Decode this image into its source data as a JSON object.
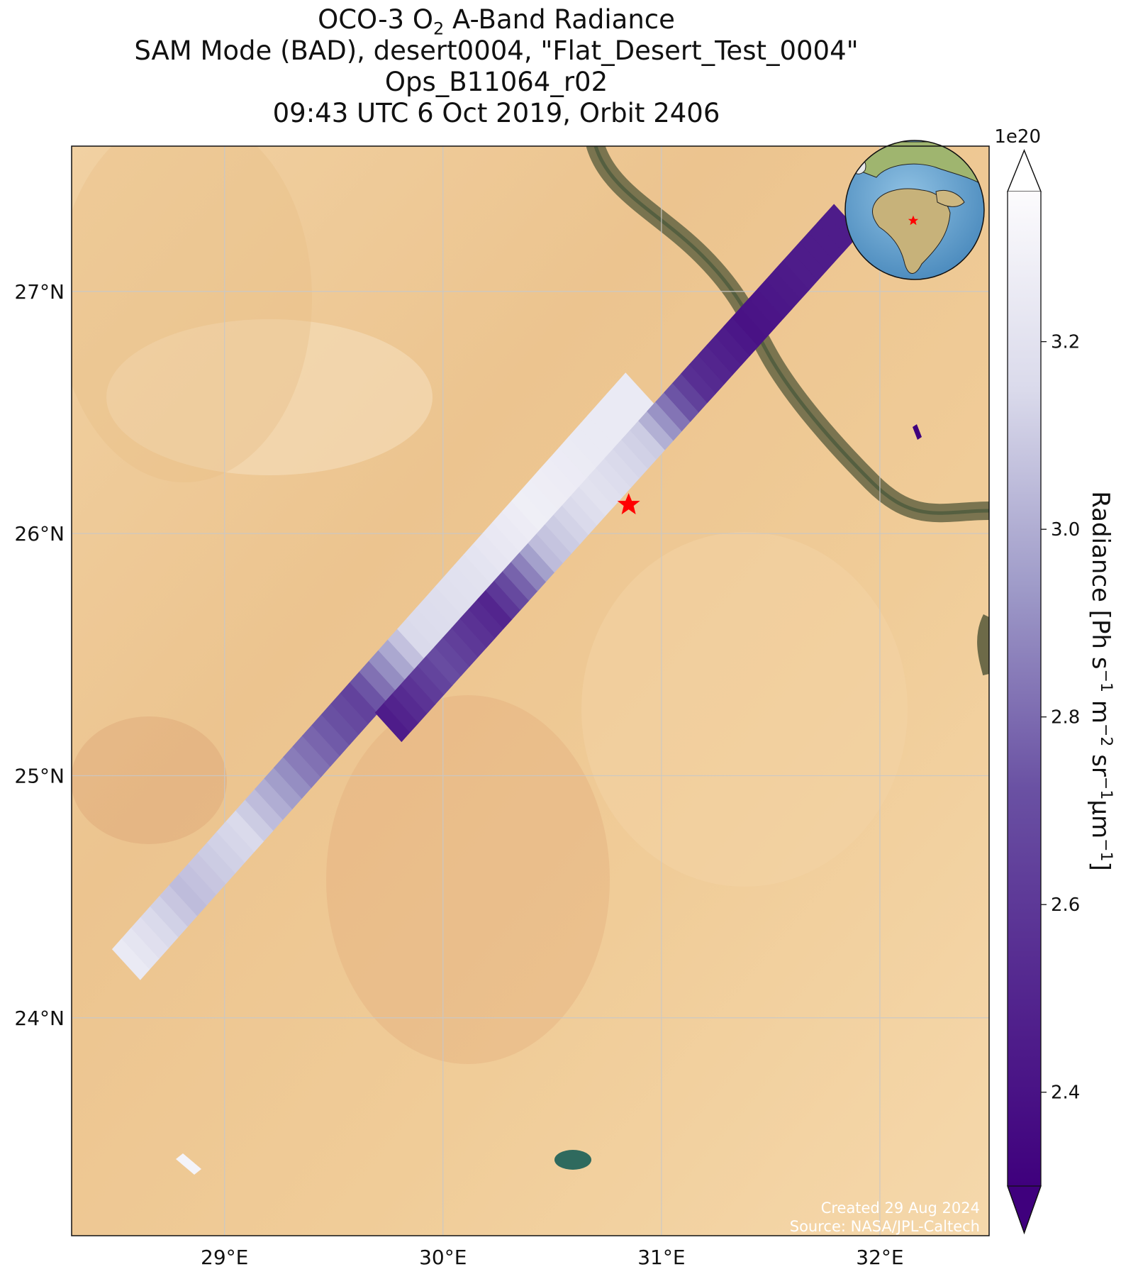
{
  "title": {
    "line1_prefix": "OCO-3 O",
    "line1_sub": "2",
    "line1_suffix": " A-Band Radiance",
    "line2": "SAM Mode (BAD), desert0004, \"Flat_Desert_Test_0004\"",
    "line3": "Ops_B11064_r02",
    "line4": "09:43 UTC 6 Oct 2019, Orbit 2406"
  },
  "map": {
    "lon_range": [
      28.3,
      32.5
    ],
    "lat_range": [
      23.1,
      27.6
    ],
    "lon_ticks": [
      {
        "value": 29,
        "label": "29°E"
      },
      {
        "value": 30,
        "label": "30°E"
      },
      {
        "value": 31,
        "label": "31°E"
      },
      {
        "value": 32,
        "label": "32°E"
      }
    ],
    "lat_ticks": [
      {
        "value": 27,
        "label": "27°N"
      },
      {
        "value": 26,
        "label": "26°N"
      },
      {
        "value": 25,
        "label": "25°N"
      },
      {
        "value": 24,
        "label": "24°N"
      }
    ],
    "target_marker": {
      "lon": 30.85,
      "lat": 26.12,
      "color": "#ff0000"
    },
    "basemap": "satellite imagery, desert terrain with Nile river valley",
    "inset_globe": "globe centred on Africa with red star at target"
  },
  "colorbar": {
    "label_main": "Radiance [Ph s",
    "exponent_label": "1e20",
    "vmin": 2.3,
    "vmax": 3.36,
    "ticks": [
      {
        "value": 3.2,
        "label": "3.2"
      },
      {
        "value": 3.0,
        "label": "3.0"
      },
      {
        "value": 2.8,
        "label": "2.8"
      },
      {
        "value": 2.6,
        "label": "2.6"
      },
      {
        "value": 2.4,
        "label": "2.4"
      }
    ],
    "colormap": "Purples_r",
    "color_low": "#3f007d",
    "color_high": "#fcfbfd",
    "extend": "both"
  },
  "credits": {
    "line1": "Created 29 Aug 2024",
    "line2": "Source: NASA/JPL-Caltech"
  },
  "chart_data": {
    "type": "heatmap",
    "description": "OCO-3 swaths of O2 A-band radiance",
    "value_units": "1e20 Ph s^-1 m^-2 sr^-1 um^-1",
    "swaths": [
      {
        "segments": [
          {
            "lat": 24.2,
            "value": 3.25
          },
          {
            "lat": 24.5,
            "value": 3.05
          },
          {
            "lat": 24.8,
            "value": 3.15
          },
          {
            "lat": 25.1,
            "value": 2.85
          },
          {
            "lat": 25.3,
            "value": 2.65
          },
          {
            "lat": 25.6,
            "value": 3.15
          },
          {
            "lat": 25.9,
            "value": 3.2
          },
          {
            "lat": 26.2,
            "value": 3.28
          },
          {
            "lat": 26.5,
            "value": 3.25
          }
        ]
      },
      {
        "segments": [
          {
            "lat": 25.25,
            "value": 2.45
          },
          {
            "lat": 25.45,
            "value": 2.7
          },
          {
            "lat": 25.7,
            "value": 2.5
          },
          {
            "lat": 25.95,
            "value": 3.05
          },
          {
            "lat": 26.2,
            "value": 3.2
          },
          {
            "lat": 26.45,
            "value": 3.1
          },
          {
            "lat": 26.7,
            "value": 2.55
          },
          {
            "lat": 26.95,
            "value": 2.4
          },
          {
            "lat": 27.2,
            "value": 2.45
          }
        ]
      }
    ]
  }
}
